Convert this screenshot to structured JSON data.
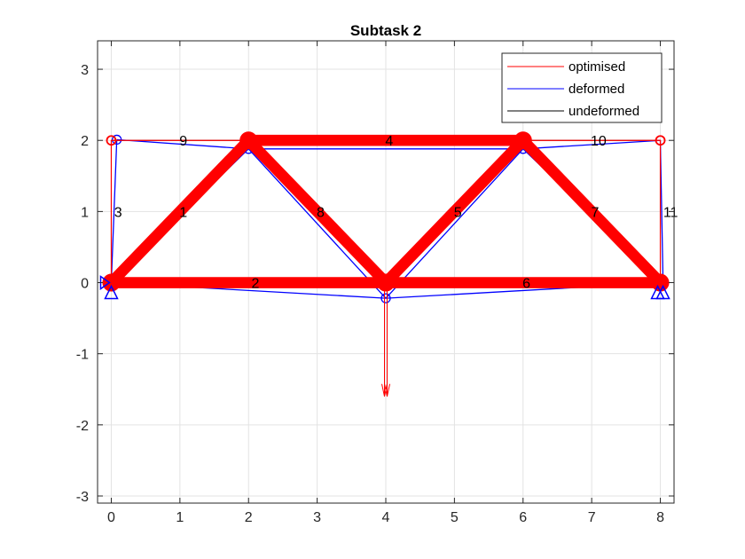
{
  "chart_data": {
    "type": "line",
    "title": "Subtask 2",
    "xlabel": "",
    "ylabel": "",
    "xlim": [
      -0.2,
      8.2
    ],
    "ylim": [
      -3.1,
      3.4
    ],
    "xticks": [
      0,
      1,
      2,
      3,
      4,
      5,
      6,
      7,
      8
    ],
    "xtick_labels": [
      "0",
      "1",
      "2",
      "3",
      "4",
      "5",
      "6",
      "7",
      "8"
    ],
    "yticks": [
      -3,
      -2,
      -1,
      0,
      1,
      2,
      3
    ],
    "ytick_labels": [
      "-3",
      "-2",
      "-1",
      "0",
      "1",
      "2",
      "3"
    ],
    "grid": true,
    "legend_position": "top-right",
    "legend": [
      {
        "label": "optimised",
        "color": "#ff0000"
      },
      {
        "label": "deformed",
        "color": "#0000ff"
      },
      {
        "label": "undeformed",
        "color": "#000000"
      }
    ],
    "colors": {
      "optimised": "#ff0000",
      "deformed": "#0000ff",
      "undeformed": "#000000"
    },
    "nodes_undeformed": [
      [
        0,
        0
      ],
      [
        2,
        2
      ],
      [
        4,
        0
      ],
      [
        6,
        2
      ],
      [
        8,
        0
      ],
      [
        0,
        2
      ],
      [
        8,
        2
      ]
    ],
    "nodes_deformed": [
      [
        0,
        0
      ],
      [
        2,
        1.88
      ],
      [
        4,
        -0.22
      ],
      [
        6,
        1.88
      ],
      [
        8.04,
        0
      ],
      [
        0.08,
        2.01
      ],
      [
        8,
        2
      ]
    ],
    "members": [
      {
        "label": "1",
        "nodes": [
          0,
          5
        ],
        "width": 1
      },
      {
        "label": "2",
        "nodes": [
          0,
          2
        ],
        "width": 9
      },
      {
        "label": "3",
        "nodes": [
          0,
          1
        ],
        "width": 9
      },
      {
        "label": "4",
        "nodes": [
          1,
          3
        ],
        "width": 9
      },
      {
        "label": "5",
        "nodes": [
          2,
          4
        ],
        "width": 9
      },
      {
        "label": "6",
        "nodes": [
          2,
          3
        ],
        "width": 9
      },
      {
        "label": "7",
        "nodes": [
          3,
          4
        ],
        "width": 9
      },
      {
        "label": "8",
        "nodes": [
          1,
          2
        ],
        "width": 9
      },
      {
        "label": "9",
        "nodes": [
          5,
          1
        ],
        "width": 1
      },
      {
        "label": "10",
        "nodes": [
          3,
          6
        ],
        "width": 1
      },
      {
        "label": "11",
        "nodes": [
          4,
          6
        ],
        "width": 1
      }
    ],
    "member_labels": [
      {
        "text": "9",
        "x": 1.05,
        "y": 2.0
      },
      {
        "text": "4",
        "x": 4.05,
        "y": 2.0
      },
      {
        "text": "10",
        "x": 7.1,
        "y": 2.0
      },
      {
        "text": "3",
        "x": 0.1,
        "y": 1.0
      },
      {
        "text": "1",
        "x": 1.05,
        "y": 1.0
      },
      {
        "text": "8",
        "x": 3.05,
        "y": 1.0
      },
      {
        "text": "5",
        "x": 5.05,
        "y": 1.0
      },
      {
        "text": "7",
        "x": 7.05,
        "y": 1.0
      },
      {
        "text": "11",
        "x": 8.15,
        "y": 1.0
      },
      {
        "text": "2",
        "x": 2.1,
        "y": 0.0
      },
      {
        "text": "6",
        "x": 6.05,
        "y": 0.0
      }
    ],
    "supports": [
      {
        "node": 0,
        "type": "pin"
      },
      {
        "node": 4,
        "type": "roller"
      }
    ],
    "load": {
      "node": 2,
      "fx": 0,
      "fy": -1.6
    }
  }
}
